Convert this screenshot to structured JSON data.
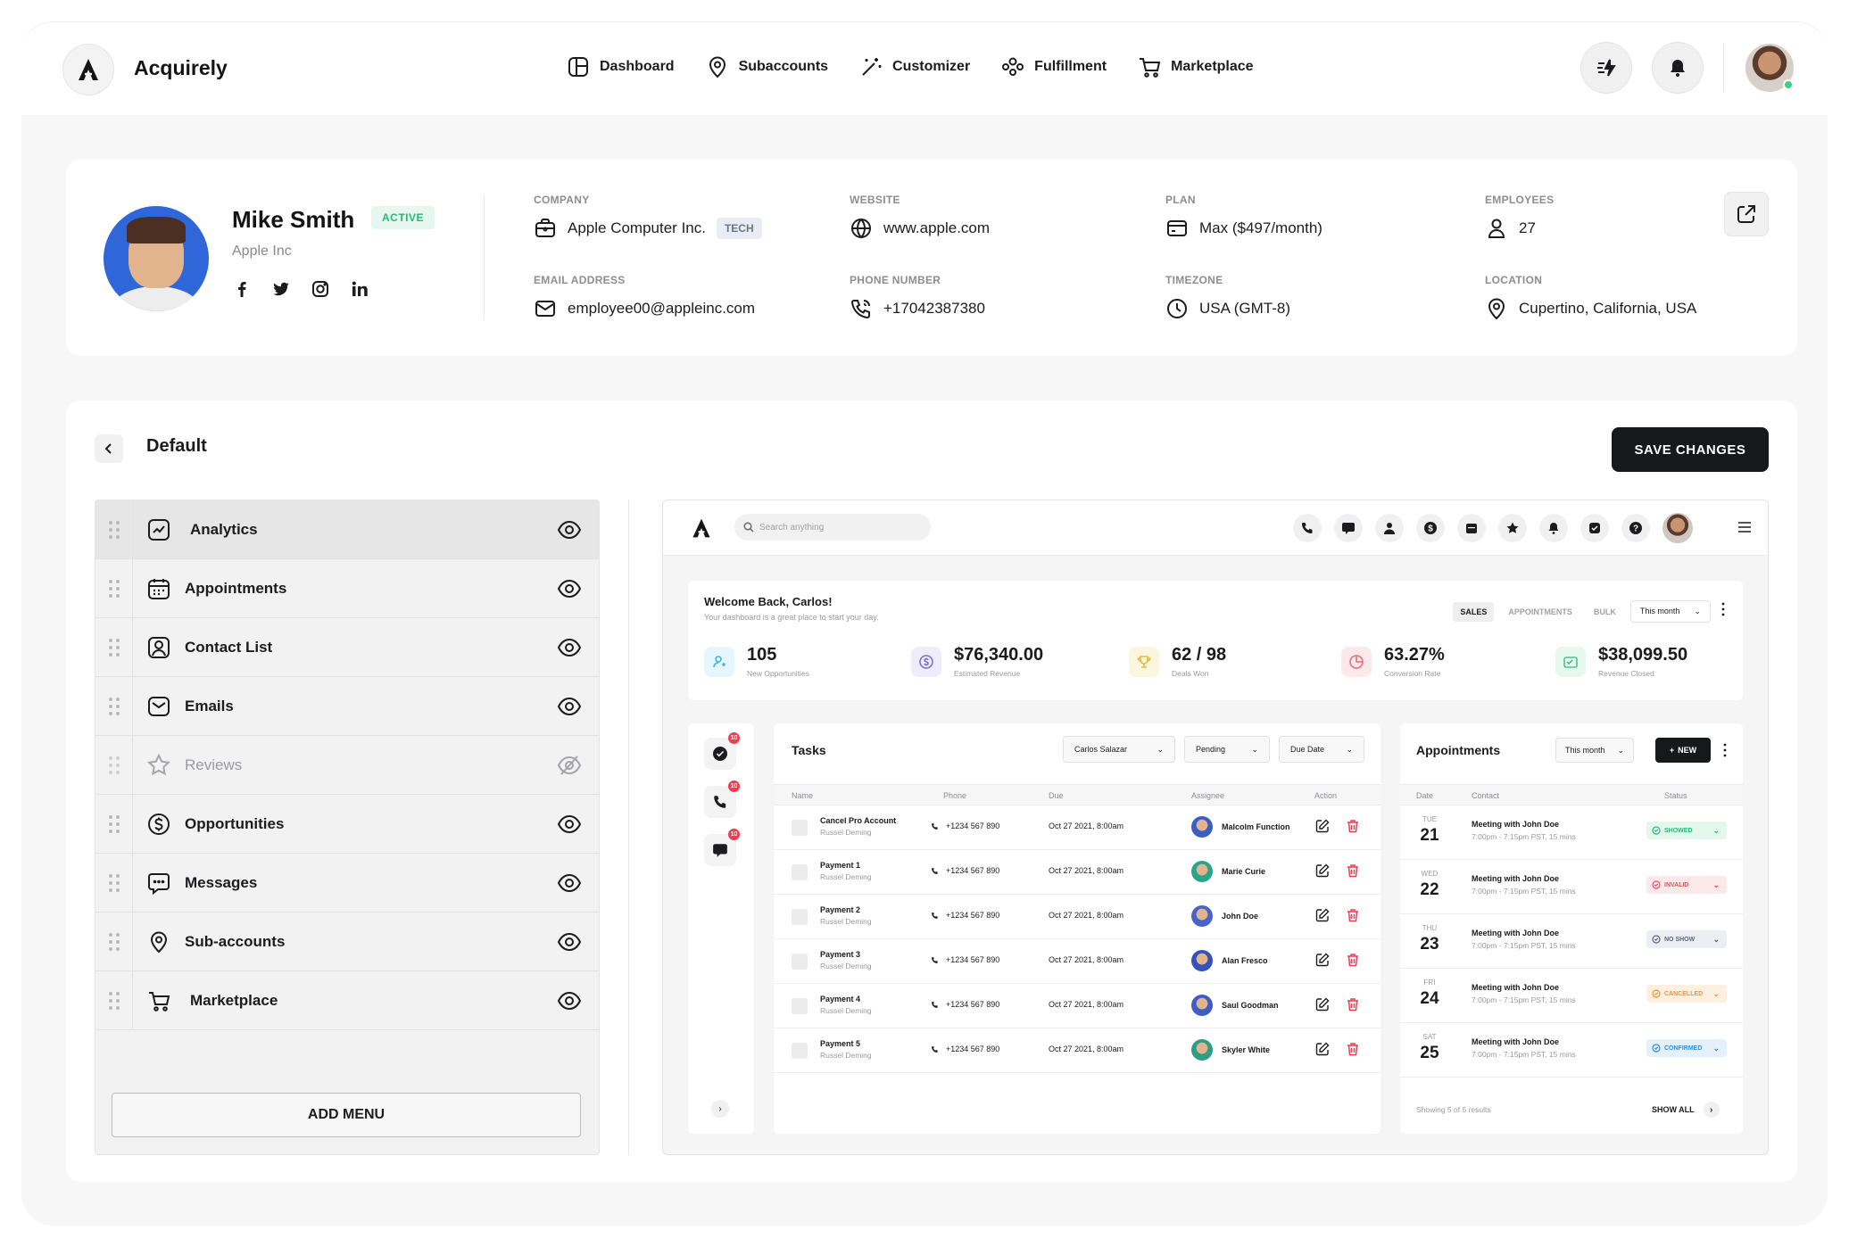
{
  "app": {
    "name": "Acquirely"
  },
  "nav": [
    {
      "label": "Dashboard",
      "icon": "dashboard-icon"
    },
    {
      "label": "Subaccounts",
      "icon": "map-pin-icon"
    },
    {
      "label": "Customizer",
      "icon": "magic-wand-icon"
    },
    {
      "label": "Fulfillment",
      "icon": "team-icon"
    },
    {
      "label": "Marketplace",
      "icon": "cart-icon"
    }
  ],
  "profile": {
    "name": "Mike Smith",
    "status": "ACTIVE",
    "company_sub": "Apple Inc",
    "company_label": "COMPANY",
    "company": "Apple Computer Inc.",
    "company_tag": "TECH",
    "website_label": "WEBSITE",
    "website": "www.apple.com",
    "plan_label": "PLAN",
    "plan": "Max ($497/month)",
    "employees_label": "EMPLOYEES",
    "employees": "27",
    "email_label": "EMAIL ADDRESS",
    "email": "employee00@appleinc.com",
    "phone_label": "PHONE NUMBER",
    "phone": "+17042387380",
    "timezone_label": "TIMEZONE",
    "timezone": "USA (GMT-8)",
    "location_label": "LOCATION",
    "location": "Cupertino, California, USA"
  },
  "builder": {
    "title": "Default",
    "save_label": "SAVE CHANGES",
    "add_menu_label": "ADD MENU",
    "menu_items": [
      {
        "label": "Analytics",
        "icon": "analytics-icon",
        "visible": true
      },
      {
        "label": "Appointments",
        "icon": "calendar-icon",
        "visible": true
      },
      {
        "label": "Contact List",
        "icon": "contact-icon",
        "visible": true
      },
      {
        "label": "Emails",
        "icon": "mail-icon",
        "visible": true
      },
      {
        "label": "Reviews",
        "icon": "star-icon",
        "visible": false
      },
      {
        "label": "Opportunities",
        "icon": "dollar-icon",
        "visible": true
      },
      {
        "label": "Messages",
        "icon": "message-icon",
        "visible": true
      },
      {
        "label": "Sub-accounts",
        "icon": "map-pin-icon",
        "visible": true
      },
      {
        "label": "Marketplace",
        "icon": "cart-icon",
        "visible": true
      }
    ]
  },
  "preview": {
    "search_placeholder": "Search anything",
    "welcome_title": "Welcome Back, Carlos!",
    "welcome_sub": "Your dashboard is a great place to start your day.",
    "tabs": [
      "SALES",
      "APPOINTMENTS",
      "BULK"
    ],
    "period": "This month",
    "stats": [
      {
        "value": "105",
        "label": "New Opportunities",
        "color": "#3db6e8",
        "bg": "#e6f6fd"
      },
      {
        "value": "$76,340.00",
        "label": "Estimated Revenue",
        "color": "#7b6fd6",
        "bg": "#efedfb"
      },
      {
        "value": "62 / 98",
        "label": "Deals Won",
        "color": "#e8b83a",
        "bg": "#fdf6df"
      },
      {
        "value": "63.27%",
        "label": "Conversion Rate",
        "color": "#ef6b7a",
        "bg": "#fde9ec"
      },
      {
        "value": "$38,099.50",
        "label": "Revenue Closed",
        "color": "#4cc38a",
        "bg": "#e6f8ef"
      }
    ],
    "rail_badge": "10",
    "tasks": {
      "title": "Tasks",
      "filters": [
        "Carlos Salazar",
        "Pending",
        "Due Date"
      ],
      "columns": [
        "Name",
        "Phone",
        "Due",
        "Assignee",
        "Action"
      ],
      "rows": [
        {
          "name": "Cancel Pro Account",
          "sub": "Russel Deming",
          "phone": "+1234 567 890",
          "due": "Oct 27 2021, 8:00am",
          "assignee": "Malcolm Function",
          "ava": "#3b5fc0"
        },
        {
          "name": "Payment 1",
          "sub": "Russel Deming",
          "phone": "+1234 567 890",
          "due": "Oct 27 2021, 8:00am",
          "assignee": "Marie Curie",
          "ava": "#2aa58a"
        },
        {
          "name": "Payment 2",
          "sub": "Russel Deming",
          "phone": "+1234 567 890",
          "due": "Oct 27 2021, 8:00am",
          "assignee": "John Doe",
          "ava": "#4a63c9"
        },
        {
          "name": "Payment 3",
          "sub": "Russel Deming",
          "phone": "+1234 567 890",
          "due": "Oct 27 2021, 8:00am",
          "assignee": "Alan Fresco",
          "ava": "#3552b8"
        },
        {
          "name": "Payment 4",
          "sub": "Russel Deming",
          "phone": "+1234 567 890",
          "due": "Oct 27 2021, 8:00am",
          "assignee": "Saul Goodman",
          "ava": "#3f5dc4"
        },
        {
          "name": "Payment 5",
          "sub": "Russel Deming",
          "phone": "+1234 567 890",
          "due": "Oct 27 2021, 8:00am",
          "assignee": "Skyler White",
          "ava": "#2f9c86"
        }
      ]
    },
    "appointments": {
      "title": "Appointments",
      "period": "This month",
      "new_label": "NEW",
      "columns": [
        "Date",
        "Contact",
        "Status"
      ],
      "rows": [
        {
          "dow": "TUE",
          "day": "21",
          "title": "Meeting with John Doe",
          "time": "7:00pm - 7:15pm PST, 15 mins",
          "status": "SHOWED",
          "color": "#2bb673",
          "bg": "#e4f7ec"
        },
        {
          "dow": "WED",
          "day": "22",
          "title": "Meeting with John Doe",
          "time": "7:00pm - 7:15pm PST, 15 mins",
          "status": "INVALID",
          "color": "#ef4d5e",
          "bg": "#fde8ea"
        },
        {
          "dow": "THU",
          "day": "23",
          "title": "Meeting with John Doe",
          "time": "7:00pm - 7:15pm PST, 15 mins",
          "status": "NO SHOW",
          "color": "#5b6478",
          "bg": "#eceef2"
        },
        {
          "dow": "FRI",
          "day": "24",
          "title": "Meeting with John Doe",
          "time": "7:00pm - 7:15pm PST, 15 mins",
          "status": "CANCELLED",
          "color": "#f0952c",
          "bg": "#fdf0e0"
        },
        {
          "dow": "SAT",
          "day": "25",
          "title": "Meeting with John Doe",
          "time": "7:00pm - 7:15pm PST, 15 mins",
          "status": "CONFIRMED",
          "color": "#2f8fe0",
          "bg": "#e4f1fc"
        }
      ],
      "footer": "Showing 5 of 5 results",
      "show_all": "SHOW ALL"
    }
  }
}
